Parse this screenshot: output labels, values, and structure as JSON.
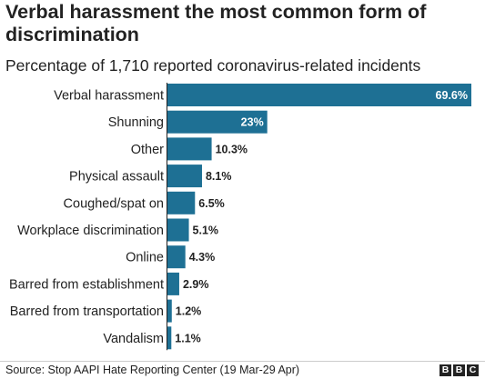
{
  "title": "Verbal harassment the most common form of discrimination",
  "subtitle": "Percentage of 1,710 reported coronavirus-related incidents",
  "source": "Source: Stop AAPI Hate Reporting Center (19 Mar-29 Apr)",
  "logo": {
    "letters": [
      "B",
      "B",
      "C"
    ]
  },
  "colors": {
    "bar": "#1e7094",
    "text": "#222222",
    "axis": "#222222",
    "inside_label": "#ffffff"
  },
  "chart_data": {
    "type": "bar",
    "orientation": "horizontal",
    "categories": [
      "Verbal harassment",
      "Shunning",
      "Other",
      "Physical assault",
      "Coughed/spat on",
      "Workplace discrimination",
      "Online",
      "Barred from establishment",
      "Barred from transportation",
      "Vandalism"
    ],
    "values": [
      69.6,
      23,
      10.3,
      8.1,
      6.5,
      5.1,
      4.3,
      2.9,
      1.2,
      1.1
    ],
    "labels": [
      "69.6%",
      "23%",
      "10.3%",
      "8.1%",
      "6.5%",
      "5.1%",
      "4.3%",
      "2.9%",
      "1.2%",
      "1.1%"
    ],
    "xlim": [
      0,
      69.6
    ],
    "grid": false,
    "legend": "none"
  }
}
